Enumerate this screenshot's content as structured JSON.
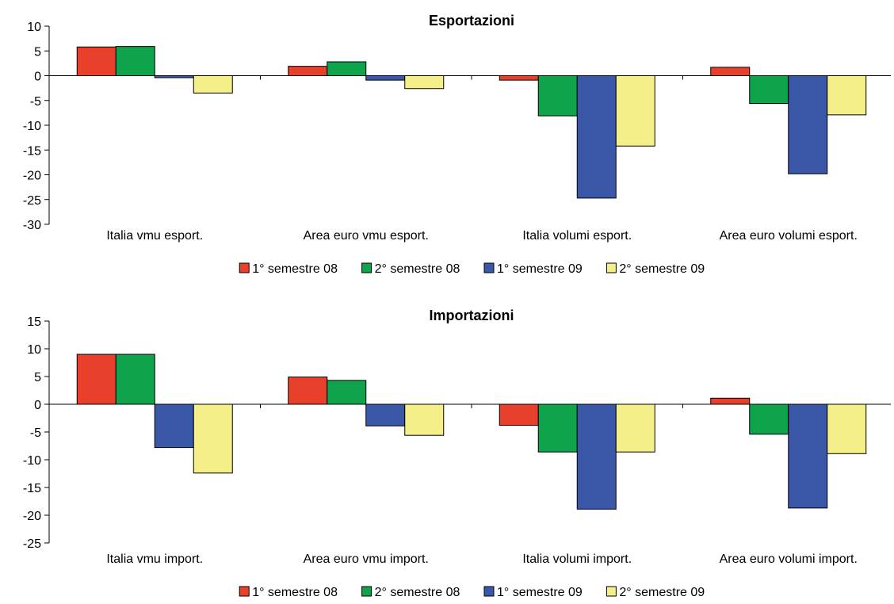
{
  "series_colors": [
    "#e8402b",
    "#0fa34b",
    "#3a57a8",
    "#f5ef8a"
  ],
  "legend": [
    "1° semestre 08",
    "2° semestre 08",
    "1° semestre 09",
    "2° semestre 09"
  ],
  "chart_data": [
    {
      "type": "bar",
      "title": "Esportazioni",
      "categories": [
        "Italia vmu esport.",
        "Area euro vmu esport.",
        "Italia volumi esport.",
        "Area euro volumi esport."
      ],
      "series": [
        {
          "name": "1° semestre 08",
          "values": [
            5.8,
            1.9,
            -0.9,
            1.7
          ]
        },
        {
          "name": "2° semestre 08",
          "values": [
            5.9,
            2.8,
            -8.1,
            -5.6
          ]
        },
        {
          "name": "1° semestre 09",
          "values": [
            -0.4,
            -0.9,
            -24.7,
            -19.8
          ]
        },
        {
          "name": "2° semestre 09",
          "values": [
            -3.5,
            -2.6,
            -14.2,
            -7.9
          ]
        }
      ],
      "ylim": [
        -30,
        10
      ],
      "yticks": [
        10,
        5,
        0,
        -5,
        -10,
        -15,
        -20,
        -25,
        -30
      ],
      "legend_position": "bottom"
    },
    {
      "type": "bar",
      "title": "Importazioni",
      "categories": [
        "Italia vmu import.",
        "Area euro vmu import.",
        "Italia volumi import.",
        "Area euro volumi import."
      ],
      "series": [
        {
          "name": "1° semestre 08",
          "values": [
            9.0,
            4.9,
            -3.8,
            1.1
          ]
        },
        {
          "name": "2° semestre 08",
          "values": [
            9.0,
            4.3,
            -8.6,
            -5.4
          ]
        },
        {
          "name": "1° semestre 09",
          "values": [
            -7.8,
            -3.9,
            -18.9,
            -18.7
          ]
        },
        {
          "name": "2° semestre 09",
          "values": [
            -12.4,
            -5.6,
            -8.6,
            -8.9
          ]
        }
      ],
      "ylim": [
        -25,
        15
      ],
      "yticks": [
        15,
        10,
        5,
        0,
        -5,
        -10,
        -15,
        -20,
        -25
      ],
      "legend_position": "bottom"
    }
  ]
}
